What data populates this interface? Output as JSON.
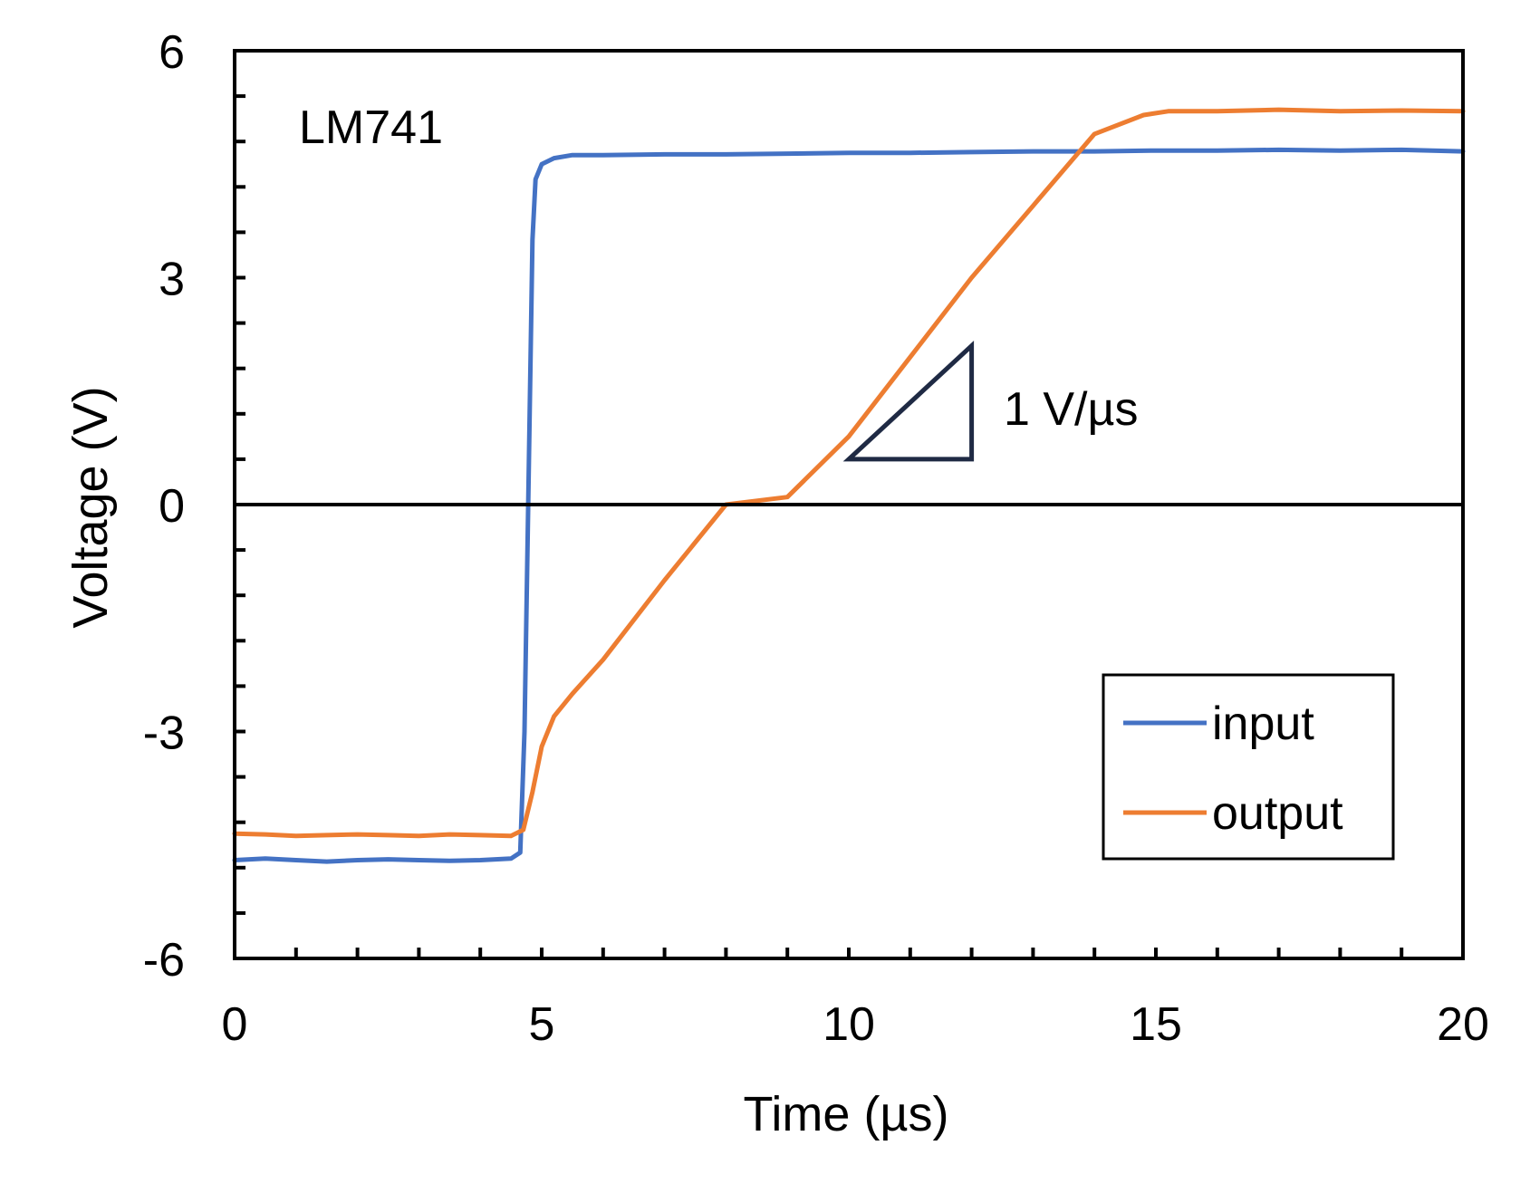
{
  "chart_data": {
    "type": "line",
    "title": "",
    "xlabel": "Time (µs)",
    "ylabel": "Voltage (V)",
    "xlim": [
      0,
      20
    ],
    "ylim": [
      -6,
      6
    ],
    "xticks": [
      0,
      5,
      10,
      15,
      20
    ],
    "yticks": [
      -6,
      -3,
      0,
      3,
      6
    ],
    "xtick_labels": [
      "0",
      "5",
      "10",
      "15",
      "20"
    ],
    "ytick_labels": [
      "-6",
      "-3",
      "0",
      "3",
      "6"
    ],
    "x_minor_step": 1,
    "y_minor_step": 0.6,
    "zero_line": true,
    "grid": false,
    "legend_position": "bottom-right",
    "annotations": {
      "device_label": "LM741",
      "slope_label": "1 V/µs",
      "slope_triangle": {
        "x0": 10.0,
        "x1": 12.0,
        "y0": 0.6,
        "y1": 2.1
      }
    },
    "series": [
      {
        "name": "input",
        "color": "#4472C4",
        "x": [
          0,
          0.5,
          1.0,
          1.5,
          2.0,
          2.5,
          3.0,
          3.5,
          4.0,
          4.5,
          4.65,
          4.72,
          4.78,
          4.85,
          4.9,
          5.0,
          5.2,
          5.5,
          6,
          7,
          8,
          9,
          10,
          11,
          12,
          13,
          14,
          15,
          16,
          17,
          18,
          19,
          20
        ],
        "y": [
          -4.7,
          -4.68,
          -4.7,
          -4.72,
          -4.7,
          -4.69,
          -4.7,
          -4.71,
          -4.7,
          -4.68,
          -4.6,
          -3.0,
          0.0,
          3.5,
          4.3,
          4.5,
          4.58,
          4.62,
          4.62,
          4.63,
          4.63,
          4.64,
          4.65,
          4.65,
          4.66,
          4.67,
          4.67,
          4.68,
          4.68,
          4.69,
          4.68,
          4.69,
          4.67
        ]
      },
      {
        "name": "output",
        "color": "#ED7D31",
        "x": [
          0,
          0.5,
          1.0,
          1.5,
          2.0,
          2.5,
          3.0,
          3.5,
          4.0,
          4.5,
          4.7,
          4.85,
          5.0,
          5.2,
          5.5,
          6,
          7,
          8,
          9,
          10,
          11,
          12,
          13,
          14,
          14.8,
          15.2,
          16,
          17,
          18,
          19,
          20
        ],
        "y": [
          -4.35,
          -4.36,
          -4.38,
          -4.37,
          -4.36,
          -4.37,
          -4.38,
          -4.36,
          -4.37,
          -4.38,
          -4.3,
          -3.8,
          -3.2,
          -2.8,
          -2.5,
          -2.05,
          -1.0,
          0.0,
          0.1,
          0.9,
          1.95,
          3.0,
          3.95,
          4.9,
          5.15,
          5.2,
          5.2,
          5.22,
          5.2,
          5.21,
          5.2
        ]
      }
    ]
  }
}
